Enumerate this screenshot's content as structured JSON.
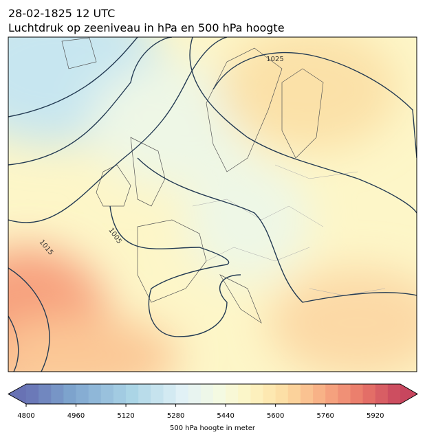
{
  "header": {
    "date_line": "28-02-1825 12 UTC",
    "title": "Luchtdruk op zeeniveau in hPa en 500 hPa hoogte"
  },
  "map": {
    "contour_labels": [
      1025,
      1005,
      1015
    ]
  },
  "colorbar": {
    "label": "500 hPa hoogte in meter",
    "lim": [
      4800,
      6000
    ],
    "ticks": [
      4800,
      4960,
      5120,
      5280,
      5440,
      5600,
      5760,
      5920
    ]
  }
}
